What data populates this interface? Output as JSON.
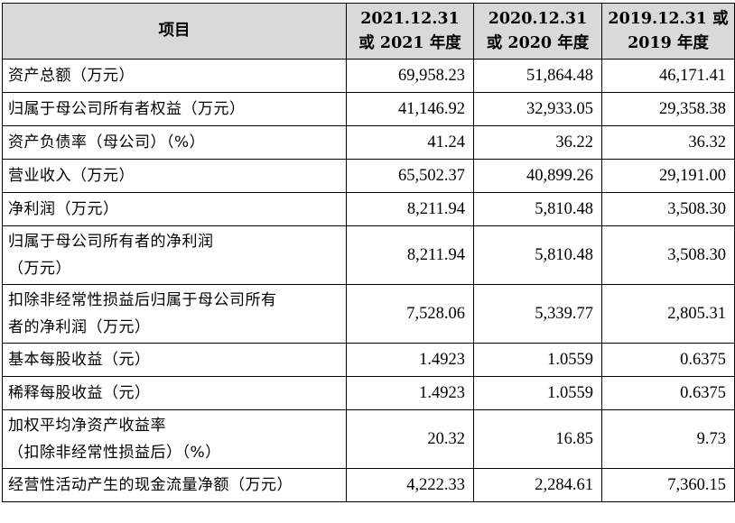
{
  "table": {
    "header": {
      "item": "项目",
      "col1": [
        "2021.12.31",
        "或 2021 年度"
      ],
      "col2": [
        "2020.12.31",
        "或 2020 年度"
      ],
      "col3": [
        "2019.12.31 或",
        "2019 年度"
      ]
    },
    "rows": [
      {
        "label": [
          "资产总额（万元）"
        ],
        "values": [
          "69,958.23",
          "51,864.48",
          "46,171.41"
        ]
      },
      {
        "label": [
          "归属于母公司所有者权益（万元）"
        ],
        "values": [
          "41,146.92",
          "32,933.05",
          "29,358.38"
        ]
      },
      {
        "label": [
          "资产负债率（母公司）（%）"
        ],
        "values": [
          "41.24",
          "36.22",
          "36.32"
        ]
      },
      {
        "label": [
          "营业收入（万元）"
        ],
        "values": [
          "65,502.37",
          "40,899.26",
          "29,191.00"
        ]
      },
      {
        "label": [
          "净利润（万元）"
        ],
        "values": [
          "8,211.94",
          "5,810.48",
          "3,508.30"
        ]
      },
      {
        "label": [
          "归属于母公司所有者的净利润",
          "（万元）"
        ],
        "values": [
          "8,211.94",
          "5,810.48",
          "3,508.30"
        ]
      },
      {
        "label": [
          "扣除非经常性损益后归属于母公司所有",
          "者的净利润（万元）"
        ],
        "values": [
          "7,528.06",
          "5,339.77",
          "2,805.31"
        ]
      },
      {
        "label": [
          "基本每股收益（元）"
        ],
        "values": [
          "1.4923",
          "1.0559",
          "0.6375"
        ]
      },
      {
        "label": [
          "稀释每股收益（元）"
        ],
        "values": [
          "1.4923",
          "1.0559",
          "0.6375"
        ]
      },
      {
        "label": [
          "加权平均净资产收益率",
          "（扣除非经常性损益后）（%）"
        ],
        "values": [
          "20.32",
          "16.85",
          "9.73"
        ]
      },
      {
        "label": [
          "经营性活动产生的现金流量净额（万元）"
        ],
        "values": [
          "4,222.33",
          "2,284.61",
          "7,360.15"
        ]
      }
    ]
  },
  "colors": {
    "header_background": "#d9d9d9",
    "border": "#000000",
    "text": "#000000"
  }
}
